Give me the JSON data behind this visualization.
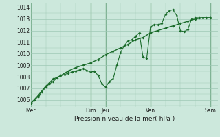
{
  "background_color": "#cce8dc",
  "grid_color": "#9ec8b4",
  "line_color": "#1a6b2a",
  "xlabel": "Pression niveau de la mer( hPa )",
  "ylim": [
    1005.4,
    1014.4
  ],
  "xlim": [
    0,
    300
  ],
  "ytick_positions": [
    1006,
    1007,
    1008,
    1009,
    1010,
    1011,
    1012,
    1013,
    1014
  ],
  "xtick_positions": [
    0,
    96,
    120,
    192,
    288
  ],
  "xtick_labels": [
    "Mer",
    "Dim",
    "Jeu",
    "Ven",
    "Sam"
  ],
  "vline_positions": [
    0,
    96,
    120,
    192,
    288
  ],
  "series1_x": [
    0,
    6,
    12,
    18,
    24,
    30,
    36,
    42,
    48,
    54,
    60,
    66,
    72,
    78,
    84,
    90,
    96,
    102,
    108,
    114,
    120,
    126,
    132,
    138,
    144,
    150,
    156,
    162,
    168,
    174,
    180,
    186,
    192,
    198,
    204,
    210,
    216,
    222,
    228,
    234,
    240,
    246,
    252,
    258,
    264,
    270,
    276,
    282,
    288
  ],
  "series1_y": [
    1005.7,
    1006.0,
    1006.3,
    1006.7,
    1007.1,
    1007.4,
    1007.6,
    1007.9,
    1008.1,
    1008.2,
    1008.3,
    1008.4,
    1008.5,
    1008.6,
    1008.7,
    1008.55,
    1008.4,
    1008.5,
    1008.1,
    1007.4,
    1007.1,
    1007.6,
    1007.8,
    1009.0,
    1010.1,
    1010.7,
    1011.1,
    1011.2,
    1011.5,
    1011.8,
    1009.7,
    1009.6,
    1012.3,
    1012.5,
    1012.5,
    1012.6,
    1013.4,
    1013.7,
    1013.8,
    1013.3,
    1012.0,
    1011.9,
    1012.1,
    1013.0,
    1013.1,
    1013.1,
    1013.1,
    1013.1,
    1013.1
  ],
  "series2_x": [
    0,
    12,
    24,
    36,
    48,
    60,
    72,
    84,
    96,
    108,
    120,
    132,
    144,
    156,
    168,
    180,
    192,
    204,
    216,
    228,
    240,
    252,
    264,
    276,
    288
  ],
  "series2_y": [
    1005.7,
    1006.4,
    1007.2,
    1007.8,
    1008.1,
    1008.5,
    1008.8,
    1009.0,
    1009.2,
    1009.5,
    1009.9,
    1010.2,
    1010.5,
    1010.8,
    1011.2,
    1011.4,
    1011.8,
    1012.0,
    1012.2,
    1012.4,
    1012.6,
    1012.8,
    1013.0,
    1013.1,
    1013.1
  ]
}
